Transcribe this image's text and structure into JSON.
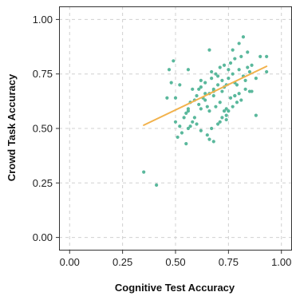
{
  "chart_data": {
    "type": "scatter",
    "title": "",
    "xlabel": "Cognitive Test Accuracy",
    "ylabel": "Crowd Task Accuracy",
    "xlim": [
      -0.05,
      1.05
    ],
    "ylim": [
      -0.06,
      1.06
    ],
    "grid": true,
    "x_ticks": [
      0.0,
      0.25,
      0.5,
      0.75,
      1.0
    ],
    "x_tick_labels": [
      "0.00",
      "0.25",
      "0.50",
      "0.75",
      "1.00"
    ],
    "y_ticks": [
      0.0,
      0.25,
      0.5,
      0.75,
      1.0
    ],
    "y_tick_labels": [
      "0.00",
      "0.25",
      "0.50",
      "0.75",
      "1.00"
    ],
    "colors": {
      "points": "#5ab89c",
      "trend": "#f2b24c",
      "grid": "#d0d0d0",
      "axis": "#333333"
    },
    "series": [
      {
        "kind": "points",
        "x": [
          0.49,
          0.56,
          0.66,
          0.8,
          0.82,
          0.77,
          0.84,
          0.78,
          0.76,
          0.81,
          0.71,
          0.69,
          0.8,
          0.73,
          0.85,
          0.82,
          0.77,
          0.75,
          0.72,
          0.74,
          0.67,
          0.64,
          0.62,
          0.61,
          0.66,
          0.68,
          0.7,
          0.63,
          0.59,
          0.57,
          0.56,
          0.62,
          0.65,
          0.71,
          0.76,
          0.78,
          0.73,
          0.83,
          0.88,
          0.9,
          0.93,
          0.83,
          0.79,
          0.8,
          0.86,
          0.72,
          0.68,
          0.64,
          0.61,
          0.56,
          0.54,
          0.5,
          0.48,
          0.52,
          0.55,
          0.59,
          0.6,
          0.62,
          0.66,
          0.68,
          0.7,
          0.72,
          0.74,
          0.75,
          0.77,
          0.79,
          0.81,
          0.85,
          0.88,
          0.78,
          0.73,
          0.68,
          0.64,
          0.6,
          0.58,
          0.56,
          0.53,
          0.51,
          0.55,
          0.65,
          0.67,
          0.71,
          0.74,
          0.69,
          0.66,
          0.57,
          0.5,
          0.46,
          0.47,
          0.52,
          0.58,
          0.62,
          0.67,
          0.7,
          0.75,
          0.84,
          0.86,
          0.93,
          0.78,
          0.74,
          0.35,
          0.41
        ],
        "y": [
          0.81,
          0.77,
          0.86,
          0.89,
          0.92,
          0.86,
          0.85,
          0.82,
          0.8,
          0.83,
          0.78,
          0.75,
          0.77,
          0.79,
          0.76,
          0.74,
          0.75,
          0.73,
          0.72,
          0.7,
          0.73,
          0.71,
          0.69,
          0.68,
          0.66,
          0.67,
          0.7,
          0.64,
          0.63,
          0.62,
          0.59,
          0.59,
          0.6,
          0.62,
          0.64,
          0.65,
          0.58,
          0.68,
          0.56,
          0.83,
          0.83,
          0.72,
          0.7,
          0.66,
          0.67,
          0.67,
          0.65,
          0.63,
          0.61,
          0.58,
          0.55,
          0.53,
          0.71,
          0.51,
          0.57,
          0.55,
          0.52,
          0.49,
          0.45,
          0.44,
          0.52,
          0.55,
          0.56,
          0.58,
          0.6,
          0.62,
          0.63,
          0.67,
          0.73,
          0.71,
          0.69,
          0.68,
          0.66,
          0.65,
          0.53,
          0.5,
          0.48,
          0.46,
          0.43,
          0.47,
          0.5,
          0.53,
          0.54,
          0.6,
          0.58,
          0.51,
          0.64,
          0.64,
          0.77,
          0.7,
          0.68,
          0.72,
          0.76,
          0.74,
          0.77,
          0.78,
          0.79,
          0.76,
          0.65,
          0.59,
          0.3,
          0.24
        ]
      },
      {
        "kind": "trend",
        "x": [
          0.35,
          0.93
        ],
        "y": [
          0.515,
          0.785
        ]
      }
    ]
  }
}
